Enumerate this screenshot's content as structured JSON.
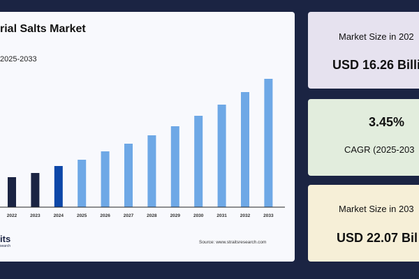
{
  "chart_data": {
    "type": "bar",
    "title": "rial Salts Market",
    "subtitle": "2025-2033",
    "categories": [
      "2022",
      "2023",
      "2024",
      "2025",
      "2026",
      "2027",
      "2028",
      "2029",
      "2030",
      "2031",
      "2032",
      "2033"
    ],
    "values": [
      43,
      49,
      59,
      68,
      80,
      91,
      103,
      116,
      131,
      147,
      165,
      184
    ],
    "bar_colors": [
      "#1b2443",
      "#1b2443",
      "#0d47a8",
      "#6ea8e6",
      "#6ea8e6",
      "#6ea8e6",
      "#6ea8e6",
      "#6ea8e6",
      "#6ea8e6",
      "#6ea8e6",
      "#6ea8e6",
      "#6ea8e6"
    ],
    "grid": false,
    "yaxis_shown": false
  },
  "source": "Source: www.straitsresearch.com",
  "logo": {
    "line1": "its",
    "line2": "search"
  },
  "cards": [
    {
      "label": "Market Size in 202",
      "value": "USD 16.26 Billi",
      "color": "#e6e2ef"
    },
    {
      "value": "3.45%",
      "label": "CAGR (2025-203",
      "color": "#e2eddd"
    },
    {
      "label": "Market Size in 203",
      "value": "USD 22.07 Bil",
      "color": "#f6efd7"
    }
  ]
}
